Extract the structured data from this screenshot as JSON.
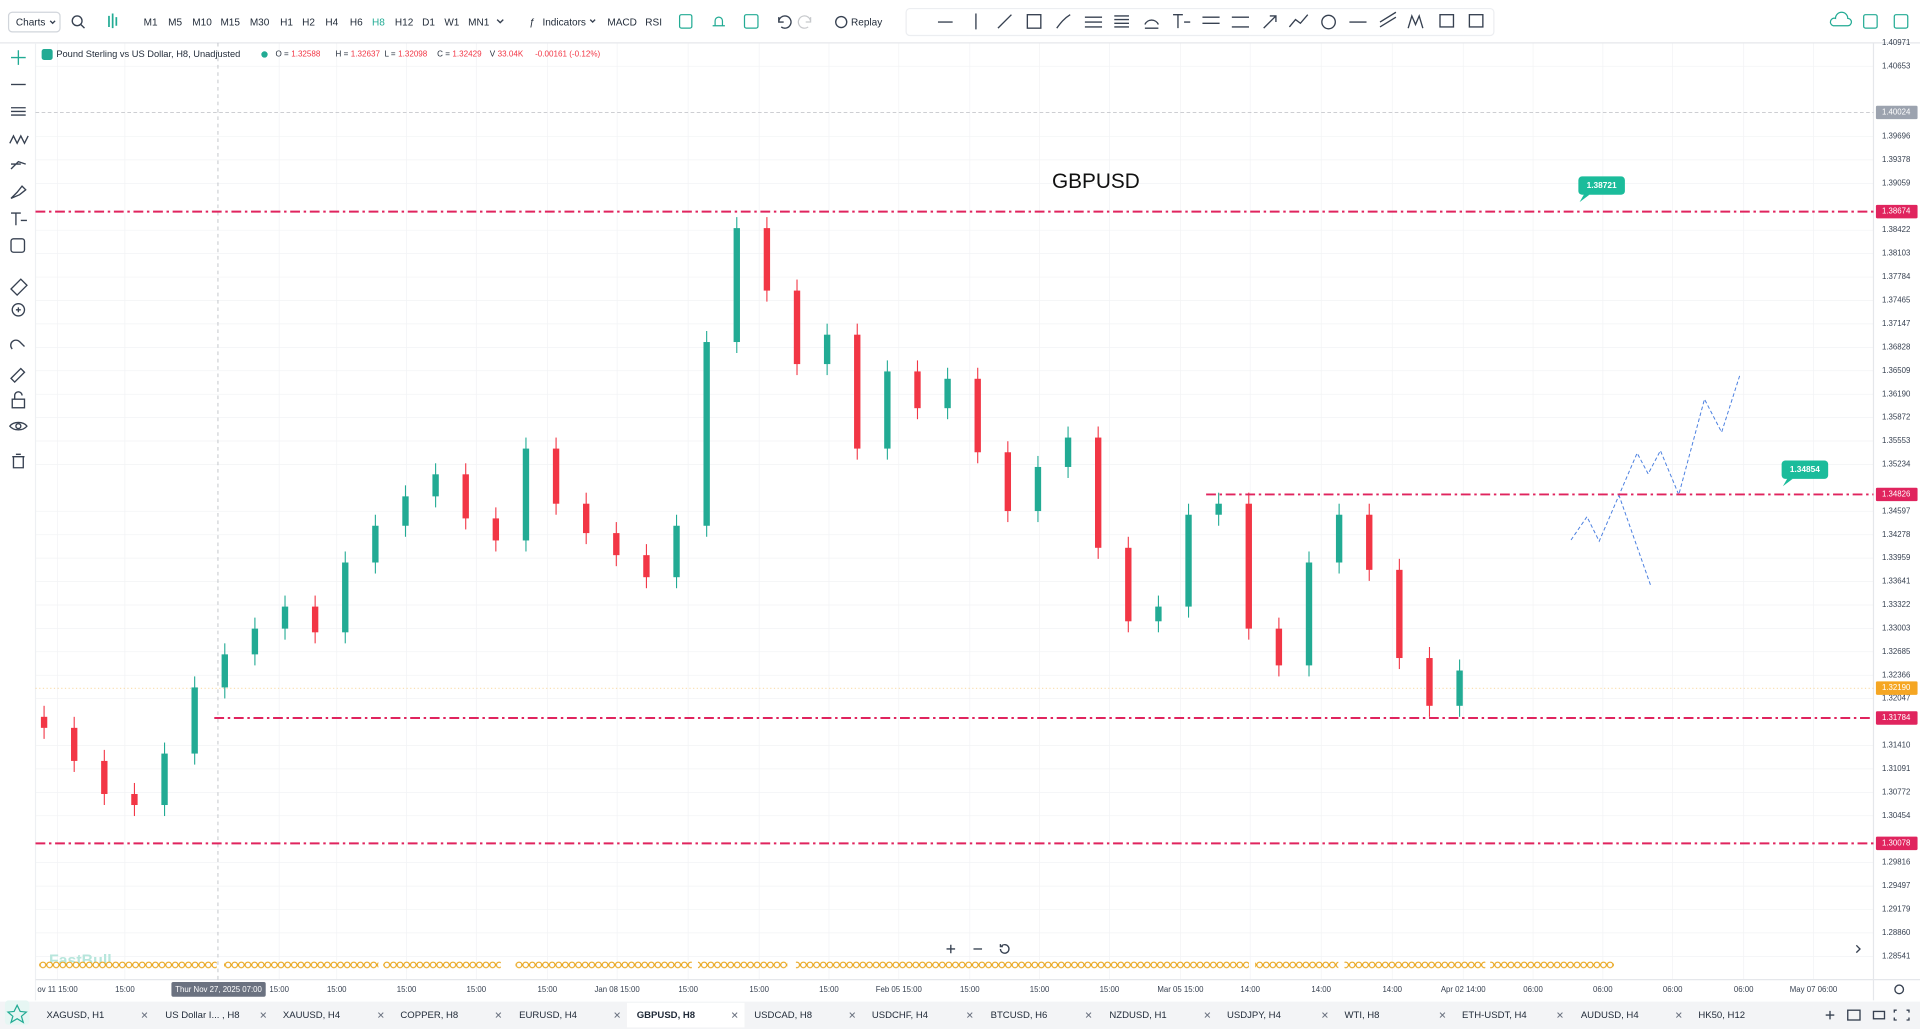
{
  "toolbar": {
    "charts": "Charts",
    "timeframes": [
      "M1",
      "M5",
      "M10",
      "M15",
      "M30",
      "H1",
      "H2",
      "H4",
      "H6",
      "H8",
      "H12",
      "D1",
      "W1",
      "MN1"
    ],
    "active_timeframe": "H8",
    "indicators": "Indicators",
    "macd": "MACD",
    "rsi": "RSI",
    "replay": "Replay"
  },
  "legend": {
    "symbol": "Pound Sterling vs US Dollar, H8, Unadjusted",
    "ohlc": [
      {
        "label": "O =",
        "value": "1.32588"
      },
      {
        "label": "H =",
        "value": "1.32637"
      },
      {
        "label": "L =",
        "value": "1.32098"
      },
      {
        "label": "C =",
        "value": "1.32429"
      },
      {
        "label": "V",
        "value": "33.04K"
      }
    ],
    "change": "-0.00161 (-0.12%)"
  },
  "watermark": "FastBull",
  "chart_data": {
    "type": "candlestick",
    "title": "GBPUSD",
    "up_color": "#22ab94",
    "down_color": "#f23645",
    "grid": true,
    "open": [
      1.318,
      1.3165,
      1.312,
      1.3075,
      1.306,
      1.313,
      1.322,
      1.3265,
      1.33,
      1.333,
      1.3295,
      1.339,
      1.344,
      1.348,
      1.351,
      1.345,
      1.342,
      1.3545,
      1.347,
      1.343,
      1.34,
      1.337,
      1.344,
      1.369,
      1.3845,
      1.376,
      1.366,
      1.37,
      1.3545,
      1.365,
      1.36,
      1.364,
      1.354,
      1.346,
      1.352,
      1.356,
      1.341,
      1.331,
      1.333,
      1.3455,
      1.347,
      1.33,
      1.325,
      1.339,
      1.3455,
      1.338,
      1.326,
      1.3195
    ],
    "high": [
      1.3195,
      1.318,
      1.3135,
      1.309,
      1.3145,
      1.3235,
      1.328,
      1.3315,
      1.3345,
      1.3345,
      1.3405,
      1.3455,
      1.3495,
      1.3525,
      1.3525,
      1.3465,
      1.356,
      1.356,
      1.3485,
      1.3445,
      1.3415,
      1.3455,
      1.3705,
      1.386,
      1.386,
      1.3775,
      1.3715,
      1.3715,
      1.3665,
      1.3665,
      1.3655,
      1.3655,
      1.3555,
      1.3535,
      1.3575,
      1.3575,
      1.3425,
      1.3345,
      1.347,
      1.3485,
      1.3485,
      1.3315,
      1.3405,
      1.347,
      1.347,
      1.3395,
      1.3275,
      1.3258
    ],
    "low": [
      1.315,
      1.3105,
      1.306,
      1.3045,
      1.3045,
      1.3115,
      1.3205,
      1.325,
      1.3285,
      1.328,
      1.328,
      1.3375,
      1.3425,
      1.3465,
      1.3435,
      1.3405,
      1.3405,
      1.3455,
      1.3415,
      1.3385,
      1.3355,
      1.3355,
      1.3425,
      1.3675,
      1.3745,
      1.3645,
      1.3645,
      1.353,
      1.353,
      1.3585,
      1.3585,
      1.3525,
      1.3445,
      1.3445,
      1.3505,
      1.3395,
      1.3295,
      1.3295,
      1.3315,
      1.344,
      1.3285,
      1.3235,
      1.3235,
      1.3375,
      1.3365,
      1.3245,
      1.318,
      1.318
    ],
    "close": [
      1.3165,
      1.312,
      1.3075,
      1.306,
      1.313,
      1.322,
      1.3265,
      1.33,
      1.333,
      1.3295,
      1.339,
      1.344,
      1.348,
      1.351,
      1.345,
      1.342,
      1.3545,
      1.347,
      1.343,
      1.34,
      1.337,
      1.344,
      1.369,
      1.3845,
      1.376,
      1.366,
      1.37,
      1.3545,
      1.365,
      1.36,
      1.364,
      1.354,
      1.346,
      1.352,
      1.356,
      1.341,
      1.331,
      1.333,
      1.3455,
      1.347,
      1.33,
      1.325,
      1.339,
      1.3455,
      1.338,
      1.326,
      1.3195,
      1.3243
    ],
    "ylim": [
      1.28541,
      1.40971
    ],
    "yticks": [
      1.40971,
      1.40653,
      1.39696,
      1.39378,
      1.39059,
      1.38422,
      1.38103,
      1.37784,
      1.37465,
      1.37147,
      1.36828,
      1.36509,
      {
        "value": 1.3619,
        "label": "1.36190"
      },
      1.35872,
      1.35553,
      1.35234,
      1.34597,
      1.34278,
      1.33959,
      1.33641,
      1.33322,
      1.33003,
      1.32685,
      1.32366,
      1.32047,
      {
        "value": 1.3141,
        "label": "1.31410"
      },
      1.31091,
      1.30772,
      1.30454,
      1.29816,
      1.29497,
      1.29179,
      {
        "value": 1.2886,
        "label": "1.28860"
      },
      1.28541
    ],
    "levels": [
      1.38674,
      1.34826,
      1.31784,
      1.30078
    ],
    "level_color": "#e0245e",
    "reference_price": 1.40024,
    "last_price": {
      "value": 1.3219,
      "label": "1.32190"
    },
    "callouts": [
      1.38721,
      1.34854
    ],
    "x_labels": [
      "ov 11 15:00",
      "15:00",
      "15:00",
      "15:00",
      "15:00",
      "15:00",
      "15:00",
      "Jan 08 15:00",
      "15:00",
      "15:00",
      "15:00",
      "Feb 05 15:00",
      "15:00",
      "15:00",
      "15:00",
      "Mar 05 15:00",
      "14:00",
      "14:00",
      "14:00",
      "Apr 02 14:00",
      "06:00",
      "06:00",
      "06:00",
      "06:00",
      "May 07 06:00"
    ],
    "cursor_label": "Thur Nov 27, 2025 07:00"
  },
  "tabs": [
    "XAGUSD, H1",
    "US Dollar I... , H8",
    "XAUUSD, H4",
    "COPPER, H8",
    "EURUSD, H4",
    "GBPUSD, H8",
    "USDCAD, H8",
    "USDCHF, H4",
    "BTCUSD, H6",
    "NZDUSD, H1",
    "USDJPY, H4",
    "WTI, H8",
    "ETH-USDT, H4",
    "AUDUSD, H4",
    "HK50, H12"
  ],
  "active_tab": "GBPUSD, H8"
}
